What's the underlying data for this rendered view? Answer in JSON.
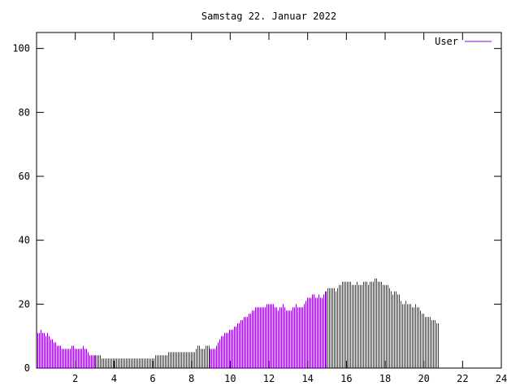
{
  "chart_data": {
    "type": "bar",
    "title": "Samstag 22. Januar 2022",
    "xlim": [
      0,
      24
    ],
    "ylim": [
      0,
      105
    ],
    "xticks": [
      2,
      4,
      6,
      8,
      10,
      12,
      14,
      16,
      18,
      20,
      22,
      24
    ],
    "yticks": [
      0,
      20,
      40,
      60,
      80,
      100
    ],
    "legend_position": "top-right",
    "grid": false,
    "series": [
      {
        "name": "User",
        "color": "#9400d3",
        "x_step_hours": 0.08333,
        "values": [
          11,
          11,
          12,
          11,
          11,
          10,
          11,
          10,
          9,
          9,
          8,
          8,
          7,
          7,
          7,
          6,
          6,
          6,
          6,
          6,
          6,
          7,
          7,
          6,
          6,
          6,
          6,
          6,
          7,
          6,
          6,
          5,
          4,
          4,
          4,
          4,
          4,
          4,
          4,
          4,
          3,
          3,
          3,
          3,
          3,
          3,
          3,
          3,
          3,
          3,
          3,
          3,
          3,
          3,
          3,
          3,
          3,
          3,
          3,
          3,
          3,
          3,
          3,
          3,
          3,
          3,
          3,
          3,
          3,
          3,
          3,
          3,
          3,
          4,
          4,
          4,
          4,
          4,
          4,
          4,
          4,
          5,
          5,
          5,
          5,
          5,
          5,
          5,
          5,
          5,
          5,
          5,
          5,
          5,
          5,
          5,
          5,
          5,
          6,
          7,
          7,
          6,
          6,
          6,
          7,
          7,
          7,
          6,
          6,
          6,
          6,
          7,
          8,
          9,
          10,
          10,
          11,
          11,
          11,
          12,
          12,
          12,
          13,
          13,
          14,
          14,
          15,
          15,
          16,
          16,
          16,
          17,
          17,
          18,
          18,
          19,
          19,
          19,
          19,
          19,
          19,
          19,
          20,
          20,
          20,
          20,
          20,
          19,
          19,
          18,
          19,
          19,
          20,
          19,
          18,
          18,
          18,
          18,
          19,
          19,
          20,
          19,
          19,
          19,
          19,
          20,
          21,
          22,
          22,
          22,
          23,
          23,
          22,
          22,
          23,
          22,
          22,
          23,
          24,
          24,
          25,
          25,
          25,
          25,
          25,
          24,
          25,
          26,
          26,
          27,
          27,
          27,
          27,
          27,
          27,
          26,
          26,
          26,
          27,
          26,
          26,
          26,
          27,
          27,
          27,
          26,
          27,
          27,
          27,
          28,
          28,
          27,
          27,
          27,
          26,
          26,
          26,
          26,
          25,
          24,
          23,
          24,
          24,
          23,
          23,
          21,
          20,
          20,
          21,
          20,
          20,
          20,
          19,
          19,
          20,
          19,
          19,
          18,
          17,
          17,
          16,
          16,
          16,
          16,
          15,
          15,
          15,
          14,
          14
        ]
      }
    ]
  }
}
